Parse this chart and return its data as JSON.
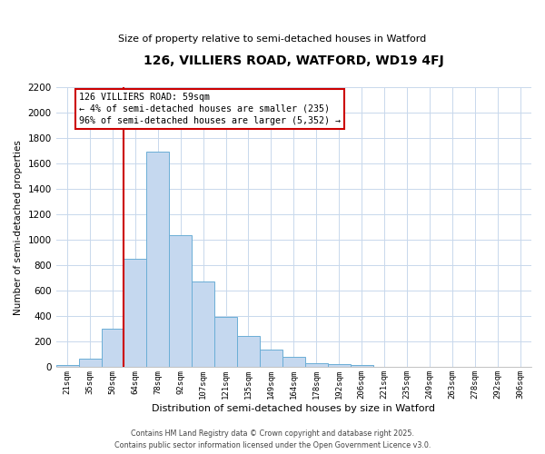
{
  "title": "126, VILLIERS ROAD, WATFORD, WD19 4FJ",
  "subtitle": "Size of property relative to semi-detached houses in Watford",
  "xlabel": "Distribution of semi-detached houses by size in Watford",
  "ylabel": "Number of semi-detached properties",
  "bar_labels": [
    "21sqm",
    "35sqm",
    "50sqm",
    "64sqm",
    "78sqm",
    "92sqm",
    "107sqm",
    "121sqm",
    "135sqm",
    "149sqm",
    "164sqm",
    "178sqm",
    "192sqm",
    "206sqm",
    "221sqm",
    "235sqm",
    "249sqm",
    "263sqm",
    "278sqm",
    "292sqm",
    "306sqm"
  ],
  "bar_values": [
    15,
    70,
    305,
    855,
    1695,
    1040,
    670,
    395,
    245,
    140,
    80,
    35,
    25,
    20,
    5,
    5,
    0,
    5,
    0,
    0,
    5
  ],
  "bar_color": "#c5d8ef",
  "bar_edge_color": "#6baed6",
  "vline_color": "#cc0000",
  "vline_position": 2.5,
  "annotation_text": "126 VILLIERS ROAD: 59sqm\n← 4% of semi-detached houses are smaller (235)\n96% of semi-detached houses are larger (5,352) →",
  "annotation_box_color": "#ffffff",
  "annotation_box_edge_color": "#cc0000",
  "ylim": [
    0,
    2200
  ],
  "yticks": [
    0,
    200,
    400,
    600,
    800,
    1000,
    1200,
    1400,
    1600,
    1800,
    2000,
    2200
  ],
  "footer_line1": "Contains HM Land Registry data © Crown copyright and database right 2025.",
  "footer_line2": "Contains public sector information licensed under the Open Government Licence v3.0.",
  "background_color": "#ffffff",
  "grid_color": "#c8d8ec"
}
